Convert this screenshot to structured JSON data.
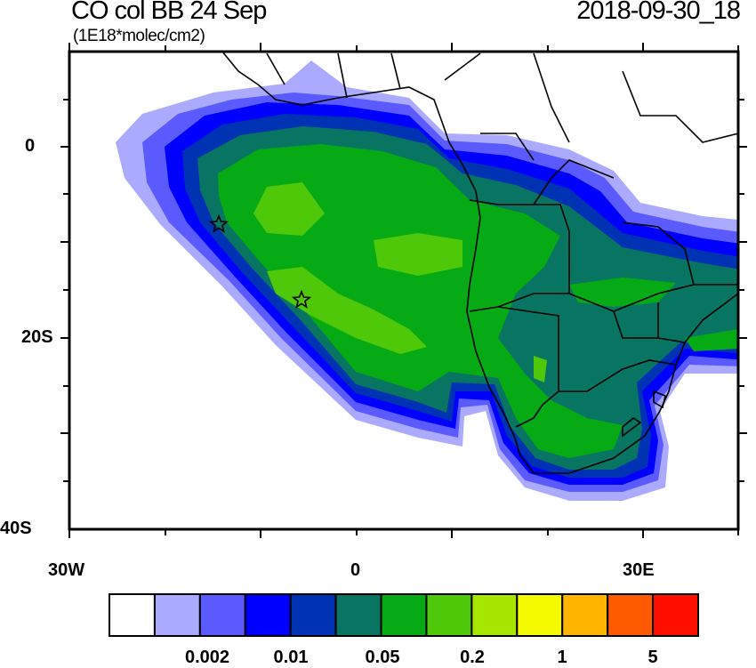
{
  "title": "CO col BB 24 Sep",
  "units": "(1E18*molec/cm2)",
  "timestamp": "2018-09-30_18",
  "axes": {
    "lat_labels": [
      "0",
      "20S",
      "40S"
    ],
    "lon_labels": [
      "30W",
      "0",
      "30E"
    ],
    "lon_range": [
      -30,
      40
    ],
    "lat_range": [
      -40,
      10
    ]
  },
  "colorbar": {
    "colors": [
      "#ffffff",
      "#aaaaff",
      "#5a5aff",
      "#0000ff",
      "#0033b3",
      "#077562",
      "#05aa14",
      "#50c80a",
      "#a6e600",
      "#f5fa00",
      "#ffb400",
      "#ff5a00",
      "#ff0f00"
    ],
    "labels": [
      "0.002",
      "0.01",
      "0.05",
      "0.2",
      "1",
      "5"
    ]
  },
  "markers": [
    {
      "name": "star",
      "lon": -14.3,
      "lat": -7.9
    },
    {
      "name": "star",
      "lon": -5.7,
      "lat": -15.9
    }
  ]
}
